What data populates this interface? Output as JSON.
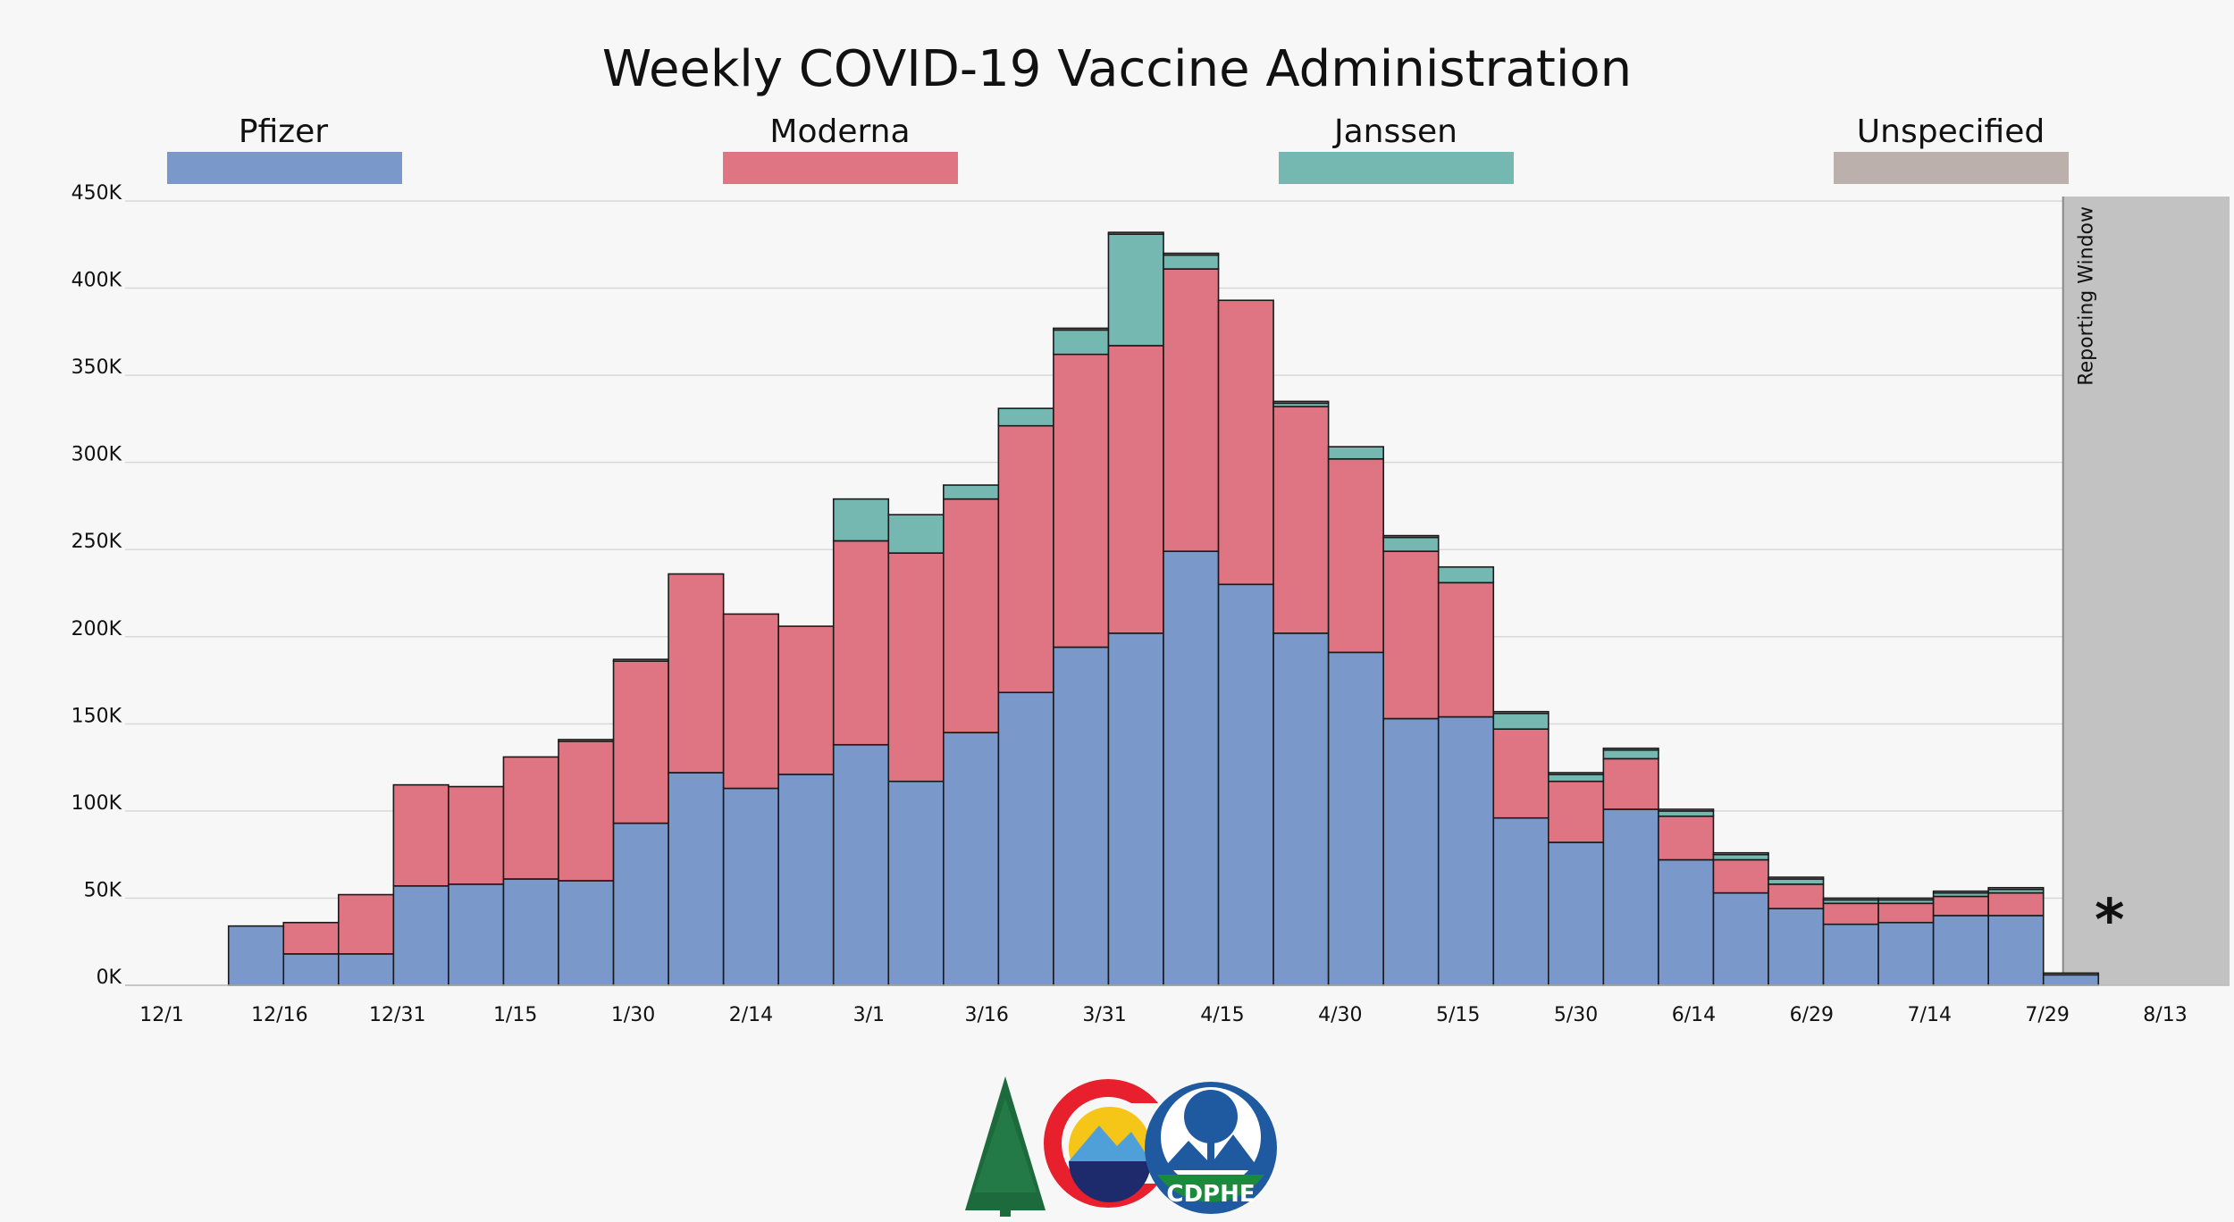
{
  "colors": {
    "pfizer": "#7a98c9",
    "moderna": "#df7582",
    "janssen": "#74b8b1",
    "unspecified": "#bbb0ab",
    "reporting_window": "#c2c2c2",
    "gridline": "#d8d8d8",
    "background": "#f7f7f7"
  },
  "logos": {
    "state_logo_icon": "colorado-c-mountain-logo",
    "agency_logo_icon": "cdphe-seal-logo",
    "agency_text": "CDPHE"
  },
  "chart_data": {
    "type": "bar",
    "stacked": true,
    "title": "Weekly COVID-19 Vaccine Administration",
    "xlabel": "",
    "ylabel": "",
    "ylim": [
      0,
      450000
    ],
    "y_ticks": [
      0,
      50000,
      100000,
      150000,
      200000,
      250000,
      300000,
      350000,
      400000,
      450000
    ],
    "y_tick_labels": [
      "0K",
      "50K",
      "100K",
      "150K",
      "200K",
      "250K",
      "300K",
      "350K",
      "400K",
      "450K"
    ],
    "x_tick_labels": [
      "12/1",
      "12/16",
      "12/31",
      "1/15",
      "1/30",
      "2/14",
      "3/1",
      "3/16",
      "3/31",
      "4/15",
      "4/30",
      "5/15",
      "5/30",
      "6/14",
      "6/29",
      "7/14",
      "7/29",
      "8/13"
    ],
    "x_range": [
      "2020-12-01",
      "2021-08-13"
    ],
    "weeks": [
      "2020-12-13",
      "2020-12-20",
      "2020-12-27",
      "2021-01-03",
      "2021-01-10",
      "2021-01-17",
      "2021-01-24",
      "2021-01-31",
      "2021-02-07",
      "2021-02-14",
      "2021-02-21",
      "2021-02-28",
      "2021-03-07",
      "2021-03-14",
      "2021-03-21",
      "2021-03-28",
      "2021-04-04",
      "2021-04-11",
      "2021-04-18",
      "2021-04-25",
      "2021-05-02",
      "2021-05-09",
      "2021-05-16",
      "2021-05-23",
      "2021-05-30",
      "2021-06-06",
      "2021-06-13",
      "2021-06-20",
      "2021-06-27",
      "2021-07-04",
      "2021-07-11",
      "2021-07-18",
      "2021-07-25",
      "2021-08-01"
    ],
    "series": [
      {
        "name": "Pfizer",
        "values": [
          34000,
          18000,
          18000,
          57000,
          58000,
          61000,
          60000,
          93000,
          122000,
          113000,
          121000,
          138000,
          117000,
          145000,
          168000,
          194000,
          202000,
          249000,
          230000,
          202000,
          191000,
          153000,
          154000,
          96000,
          82000,
          101000,
          72000,
          53000,
          44000,
          35000,
          36000,
          40000,
          40000,
          6000
        ]
      },
      {
        "name": "Moderna",
        "values": [
          0,
          18000,
          34000,
          58000,
          56000,
          70000,
          80000,
          93000,
          114000,
          100000,
          85000,
          117000,
          131000,
          134000,
          153000,
          168000,
          165000,
          162000,
          163000,
          130000,
          111000,
          96000,
          77000,
          51000,
          35000,
          29000,
          25000,
          19000,
          14000,
          12000,
          11000,
          11000,
          13000,
          0
        ]
      },
      {
        "name": "Janssen",
        "values": [
          0,
          0,
          0,
          0,
          0,
          0,
          0,
          0,
          0,
          0,
          0,
          24000,
          22000,
          8000,
          10000,
          14000,
          64000,
          8000,
          0,
          2000,
          7000,
          8000,
          9000,
          9000,
          4000,
          5000,
          3000,
          3000,
          3000,
          2000,
          2000,
          2000,
          2000,
          0
        ]
      },
      {
        "name": "Unspecified",
        "values": [
          0,
          0,
          0,
          0,
          0,
          0,
          1000,
          1000,
          0,
          0,
          0,
          0,
          0,
          0,
          0,
          1000,
          1000,
          1000,
          0,
          1000,
          0,
          1000,
          0,
          1000,
          1000,
          1000,
          1000,
          1000,
          1000,
          1000,
          1000,
          1000,
          1000,
          1000
        ]
      }
    ],
    "legend_position": "top",
    "grid": true,
    "reporting_window": {
      "label": "Reporting Window",
      "start": "2021-07-31",
      "end": "2021-08-21"
    },
    "annotation": "*"
  }
}
